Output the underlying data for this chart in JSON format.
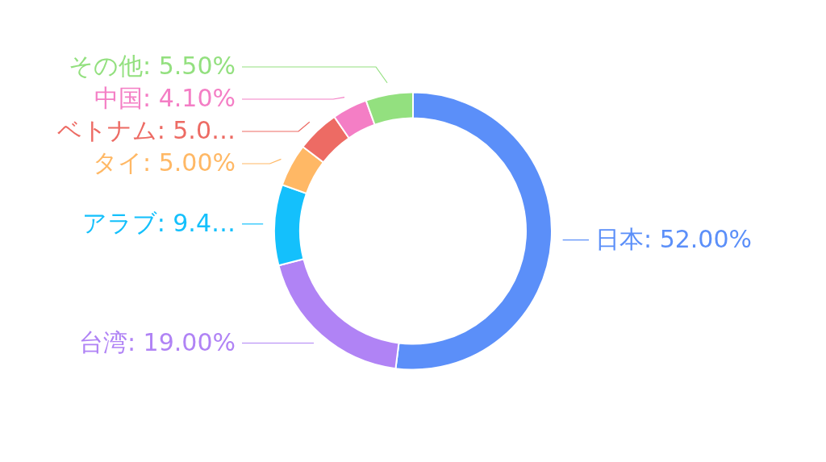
{
  "chart_data": {
    "type": "donut",
    "categories": [
      "日本",
      "台湾",
      "アラブ",
      "タイ",
      "ベトナム",
      "中国",
      "その他"
    ],
    "values": [
      52,
      19,
      9.4,
      5,
      5,
      4.1,
      5.5
    ],
    "value_labels": [
      "52.00%",
      "19.00%",
      "9.4…",
      "5.00%",
      "5.0…",
      "4.10%",
      "5.50%"
    ],
    "colors": [
      "#5b8ff9",
      "#b083f5",
      "#14c0fc",
      "#ffb865",
      "#ed6b64",
      "#f47ec5",
      "#93e07f"
    ]
  }
}
